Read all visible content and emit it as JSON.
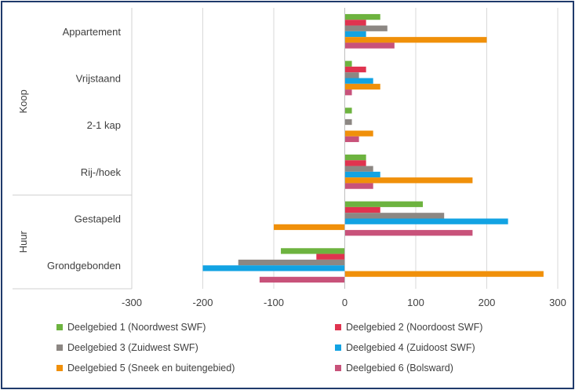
{
  "chart_data": {
    "type": "bar",
    "orientation": "horizontal",
    "groups": [
      {
        "name": "Koop",
        "categories": [
          "Appartement",
          "Vrijstaand",
          "2-1 kap",
          "Rij-/hoek"
        ]
      },
      {
        "name": "Huur",
        "categories": [
          "Gestapeld",
          "Grondgebonden"
        ]
      }
    ],
    "categories": [
      "Appartement",
      "Vrijstaand",
      "2-1 kap",
      "Rij-/hoek",
      "Gestapeld",
      "Grondgebonden"
    ],
    "series": [
      {
        "name": "Deelgebied 1 (Noordwest SWF)",
        "color": "#6db33f",
        "values": [
          50,
          10,
          10,
          30,
          110,
          -90
        ]
      },
      {
        "name": "Deelgebied 2 (Noordoost SWF)",
        "color": "#e0334f",
        "values": [
          30,
          30,
          0,
          30,
          50,
          -40
        ]
      },
      {
        "name": "Deelgebied 3 (Zuidwest SWF)",
        "color": "#8c8783",
        "values": [
          60,
          20,
          10,
          40,
          140,
          -150
        ]
      },
      {
        "name": "Deelgebied 4 (Zuidoost SWF)",
        "color": "#12a3e3",
        "values": [
          30,
          40,
          0,
          50,
          230,
          -200
        ]
      },
      {
        "name": "Deelgebied 5 (Sneek en buitengebied)",
        "color": "#f0900a",
        "values": [
          200,
          50,
          40,
          180,
          -100,
          280
        ]
      },
      {
        "name": "Deelgebied 6 (Bolsward)",
        "color": "#c8527a",
        "values": [
          70,
          10,
          20,
          40,
          180,
          -120
        ]
      }
    ],
    "xlim": [
      -300,
      300
    ],
    "xticks": [
      "-300",
      "-200",
      "-100",
      "0",
      "100",
      "200",
      "300"
    ],
    "xlabel": "",
    "ylabel": "",
    "title": "",
    "grid": "vertical",
    "legend": "bottom"
  }
}
